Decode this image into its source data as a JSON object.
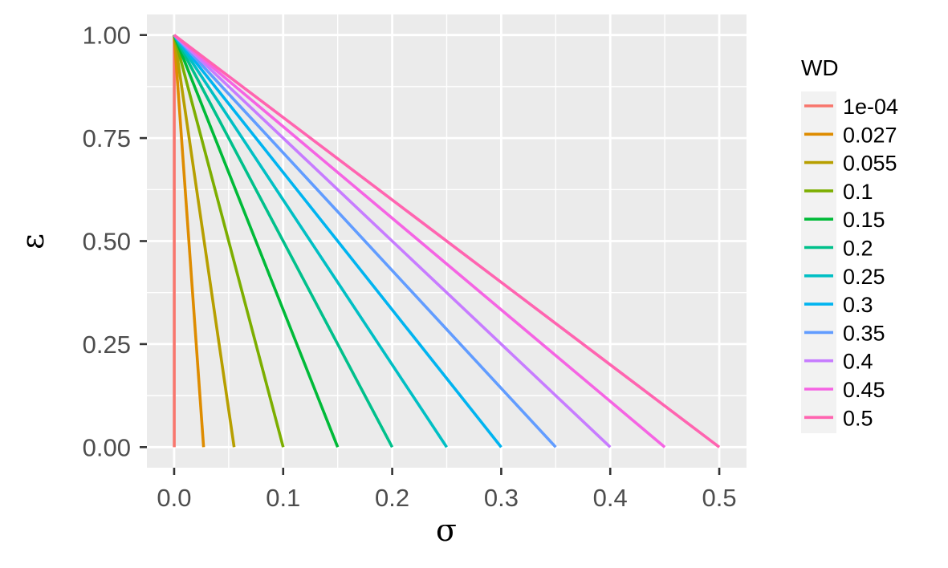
{
  "chart_data": {
    "type": "line",
    "title": "",
    "xlabel": "σ",
    "ylabel": "ε",
    "xlim": [
      -0.025,
      0.525
    ],
    "ylim": [
      -0.05,
      1.05
    ],
    "x_ticks": [
      0.0,
      0.1,
      0.2,
      0.3,
      0.4,
      0.5
    ],
    "x_tick_labels": [
      "0.0",
      "0.1",
      "0.2",
      "0.3",
      "0.4",
      "0.5"
    ],
    "y_ticks": [
      0.0,
      0.25,
      0.5,
      0.75,
      1.0
    ],
    "y_tick_labels": [
      "0.00",
      "0.25",
      "0.50",
      "0.75",
      "1.00"
    ],
    "grid": true,
    "legend": {
      "title": "WD",
      "placement": "right"
    },
    "series": [
      {
        "name": "1e-04",
        "color": "#F8766D",
        "points": [
          [
            0.0001,
            1.0
          ],
          [
            0.0001,
            0.0
          ]
        ]
      },
      {
        "name": "0.027",
        "color": "#DE8C00",
        "points": [
          [
            0.0,
            1.0
          ],
          [
            0.027,
            0.0
          ]
        ]
      },
      {
        "name": "0.055",
        "color": "#B79F00",
        "points": [
          [
            0.0,
            1.0
          ],
          [
            0.055,
            0.0
          ]
        ]
      },
      {
        "name": "0.1",
        "color": "#7CAE00",
        "points": [
          [
            0.0,
            1.0
          ],
          [
            0.1,
            0.0
          ]
        ]
      },
      {
        "name": "0.15",
        "color": "#00BA38",
        "points": [
          [
            0.0,
            1.0
          ],
          [
            0.15,
            0.0
          ]
        ]
      },
      {
        "name": "0.2",
        "color": "#00C08B",
        "points": [
          [
            0.0,
            1.0
          ],
          [
            0.2,
            0.0
          ]
        ]
      },
      {
        "name": "0.25",
        "color": "#00BFC4",
        "points": [
          [
            0.0,
            1.0
          ],
          [
            0.25,
            0.0
          ]
        ]
      },
      {
        "name": "0.3",
        "color": "#00B4F0",
        "points": [
          [
            0.0,
            1.0
          ],
          [
            0.3,
            0.0
          ]
        ]
      },
      {
        "name": "0.35",
        "color": "#619CFF",
        "points": [
          [
            0.0,
            1.0
          ],
          [
            0.35,
            0.0
          ]
        ]
      },
      {
        "name": "0.4",
        "color": "#C77CFF",
        "points": [
          [
            0.0,
            1.0
          ],
          [
            0.4,
            0.0
          ]
        ]
      },
      {
        "name": "0.45",
        "color": "#F564E3",
        "points": [
          [
            0.0,
            1.0
          ],
          [
            0.45,
            0.0
          ]
        ]
      },
      {
        "name": "0.5",
        "color": "#FF64B0",
        "points": [
          [
            0.0,
            1.0
          ],
          [
            0.5,
            0.0
          ]
        ]
      }
    ]
  }
}
